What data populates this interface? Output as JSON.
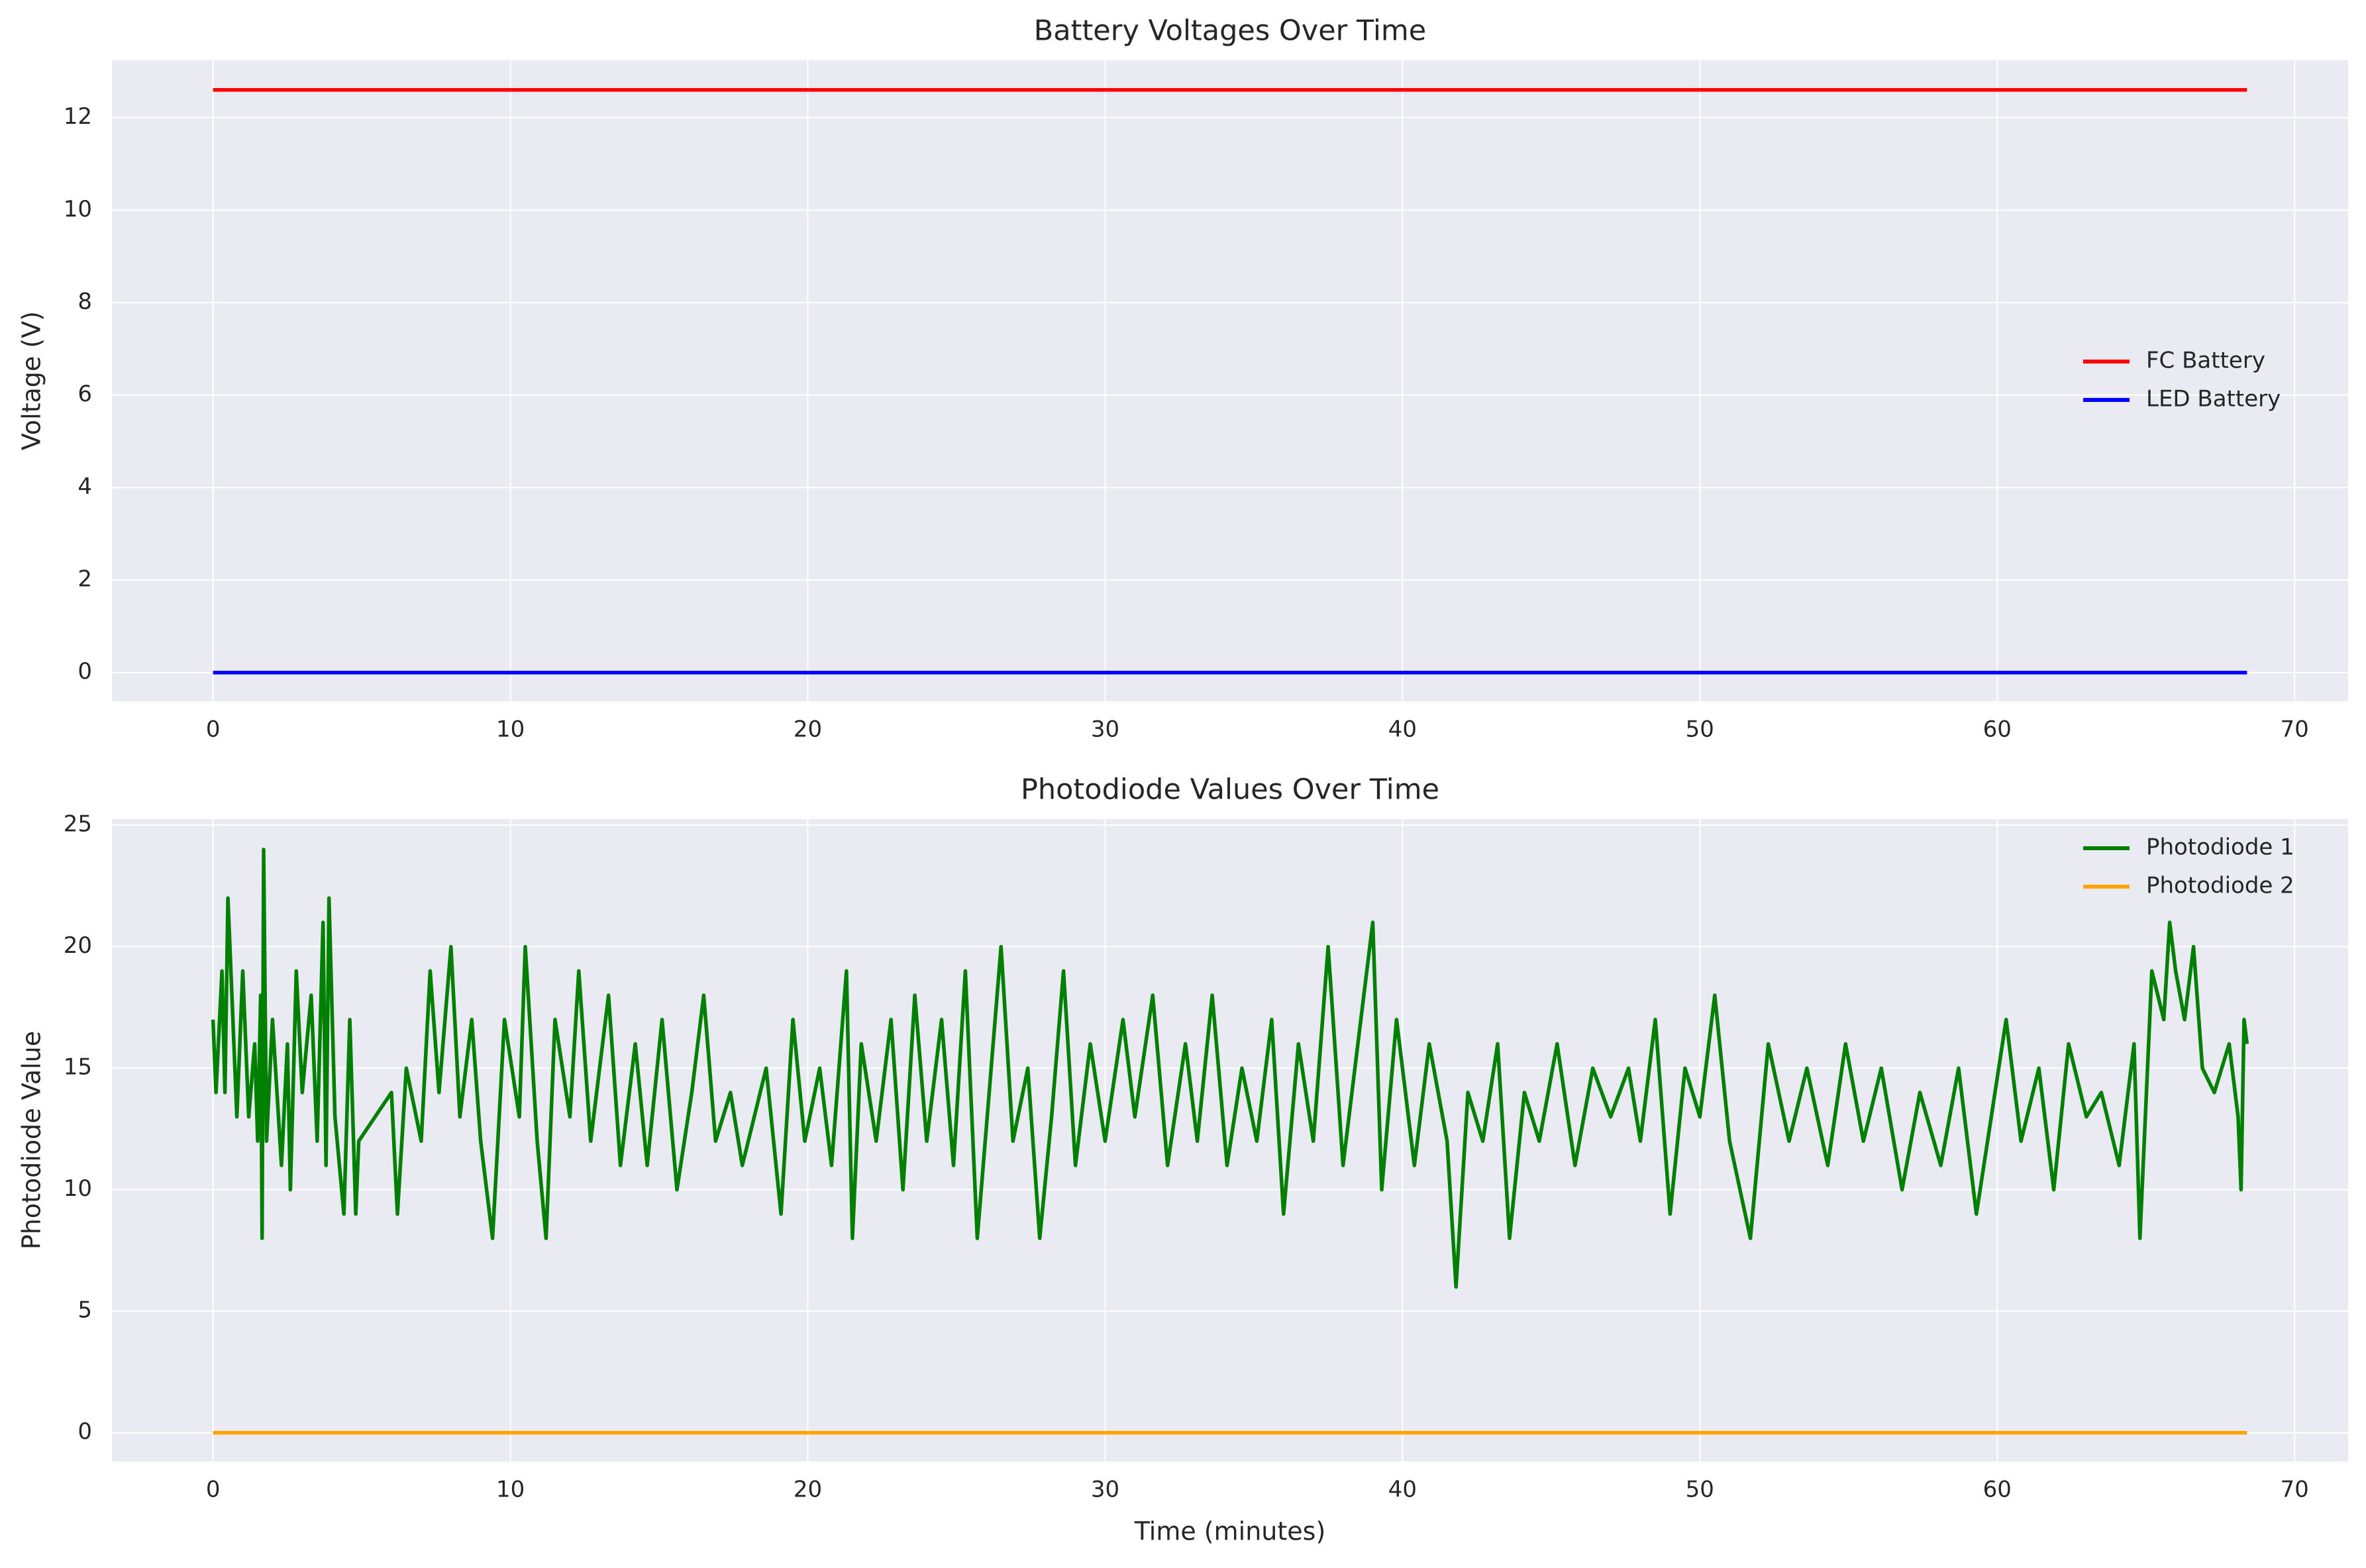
{
  "chart_data": [
    {
      "type": "line",
      "title": "Battery Voltages Over Time",
      "ylabel": "Voltage (V)",
      "xlim": [
        -3.4,
        71.8
      ],
      "ylim": [
        -0.62,
        13.24
      ],
      "xticks": [
        0,
        10,
        20,
        30,
        40,
        50,
        60,
        70
      ],
      "yticks": [
        0,
        2,
        4,
        6,
        8,
        10,
        12
      ],
      "grid": true,
      "legend": "center right",
      "series": [
        {
          "name": "FC Battery",
          "color": "#ff0000",
          "x": [
            0,
            68.4
          ],
          "values": [
            12.6,
            12.6
          ]
        },
        {
          "name": "LED Battery",
          "color": "#0000ff",
          "x": [
            0,
            68.4
          ],
          "values": [
            0,
            0
          ]
        }
      ]
    },
    {
      "type": "line",
      "title": "Photodiode Values Over Time",
      "ylabel": "Photodiode Value",
      "xlabel": "Time (minutes)",
      "xlim": [
        -3.4,
        71.8
      ],
      "ylim": [
        -1.18,
        25.25
      ],
      "xticks": [
        0,
        10,
        20,
        30,
        40,
        50,
        60,
        70
      ],
      "yticks": [
        0,
        5,
        10,
        15,
        20,
        25
      ],
      "grid": true,
      "legend": "upper right",
      "series": [
        {
          "name": "Photodiode 1",
          "color": "#008000",
          "x": [
            0,
            0.1,
            0.3,
            0.4,
            0.5,
            0.7,
            0.8,
            1.0,
            1.2,
            1.4,
            1.5,
            1.6,
            1.65,
            1.7,
            1.8,
            2.0,
            2.3,
            2.5,
            2.6,
            2.8,
            3.0,
            3.3,
            3.5,
            3.7,
            3.8,
            3.9,
            4.1,
            4.4,
            4.6,
            4.8,
            4.9,
            6.0,
            6.2,
            6.5,
            7.0,
            7.3,
            7.6,
            8.0,
            8.3,
            8.7,
            9.0,
            9.4,
            9.8,
            10.3,
            10.5,
            10.9,
            11.2,
            11.5,
            12.0,
            12.3,
            12.7,
            13.3,
            13.7,
            14.2,
            14.6,
            15.1,
            15.6,
            16.1,
            16.5,
            16.9,
            17.4,
            17.8,
            18.2,
            18.6,
            19.1,
            19.5,
            19.9,
            20.4,
            20.8,
            21.3,
            21.5,
            21.8,
            22.3,
            22.8,
            23.2,
            23.6,
            24.0,
            24.5,
            24.9,
            25.3,
            25.7,
            26.1,
            26.5,
            26.9,
            27.4,
            27.8,
            28.2,
            28.6,
            29.0,
            29.5,
            30.0,
            30.6,
            31.0,
            31.6,
            32.1,
            32.7,
            33.1,
            33.6,
            34.1,
            34.6,
            35.1,
            35.6,
            36.0,
            36.5,
            37.0,
            37.5,
            38.0,
            38.6,
            39.0,
            39.3,
            39.8,
            40.4,
            40.9,
            41.5,
            41.8,
            42.2,
            42.7,
            43.2,
            43.6,
            44.1,
            44.6,
            45.2,
            45.8,
            46.4,
            47.0,
            47.6,
            48.0,
            48.5,
            49.0,
            49.5,
            50.0,
            50.5,
            51.0,
            51.7,
            52.3,
            53.0,
            53.6,
            54.3,
            54.9,
            55.5,
            56.1,
            56.8,
            57.4,
            58.1,
            58.7,
            59.3,
            59.8,
            60.3,
            60.8,
            61.4,
            61.9,
            62.4,
            63.0,
            63.5,
            64.1,
            64.6,
            64.8,
            65.2,
            65.6,
            65.8,
            66.0,
            66.3,
            66.6,
            66.9,
            67.3,
            67.8,
            68.1,
            68.2,
            68.3,
            68.4
          ],
          "values": [
            17,
            14,
            19,
            14,
            22,
            16,
            13,
            19,
            13,
            16,
            12,
            18,
            8,
            24,
            12,
            17,
            11,
            16,
            10,
            19,
            14,
            18,
            12,
            21,
            11,
            22,
            13,
            9,
            17,
            9,
            12,
            14,
            9,
            15,
            12,
            19,
            14,
            20,
            13,
            17,
            12,
            8,
            17,
            13,
            20,
            12,
            8,
            17,
            13,
            19,
            12,
            18,
            11,
            16,
            11,
            17,
            10,
            14,
            18,
            12,
            14,
            11,
            13,
            15,
            9,
            17,
            12,
            15,
            11,
            19,
            8,
            16,
            12,
            17,
            10,
            18,
            12,
            17,
            11,
            19,
            8,
            14,
            20,
            12,
            15,
            8,
            13,
            19,
            11,
            16,
            12,
            17,
            13,
            18,
            11,
            16,
            12,
            18,
            11,
            15,
            12,
            17,
            9,
            16,
            12,
            20,
            11,
            17,
            21,
            10,
            17,
            11,
            16,
            12,
            6,
            14,
            12,
            16,
            8,
            14,
            12,
            16,
            11,
            15,
            13,
            15,
            12,
            17,
            9,
            15,
            13,
            18,
            12,
            8,
            16,
            12,
            15,
            11,
            16,
            12,
            15,
            10,
            14,
            11,
            15,
            9,
            13,
            17,
            12,
            15,
            10,
            16,
            13,
            14,
            11,
            16,
            8,
            19,
            17,
            21,
            19,
            17,
            20,
            15,
            14,
            16,
            13,
            10,
            17,
            16
          ]
        },
        {
          "name": "Photodiode 2",
          "color": "#ffa500",
          "x": [
            0,
            68.4
          ],
          "values": [
            0,
            0
          ]
        }
      ]
    }
  ]
}
